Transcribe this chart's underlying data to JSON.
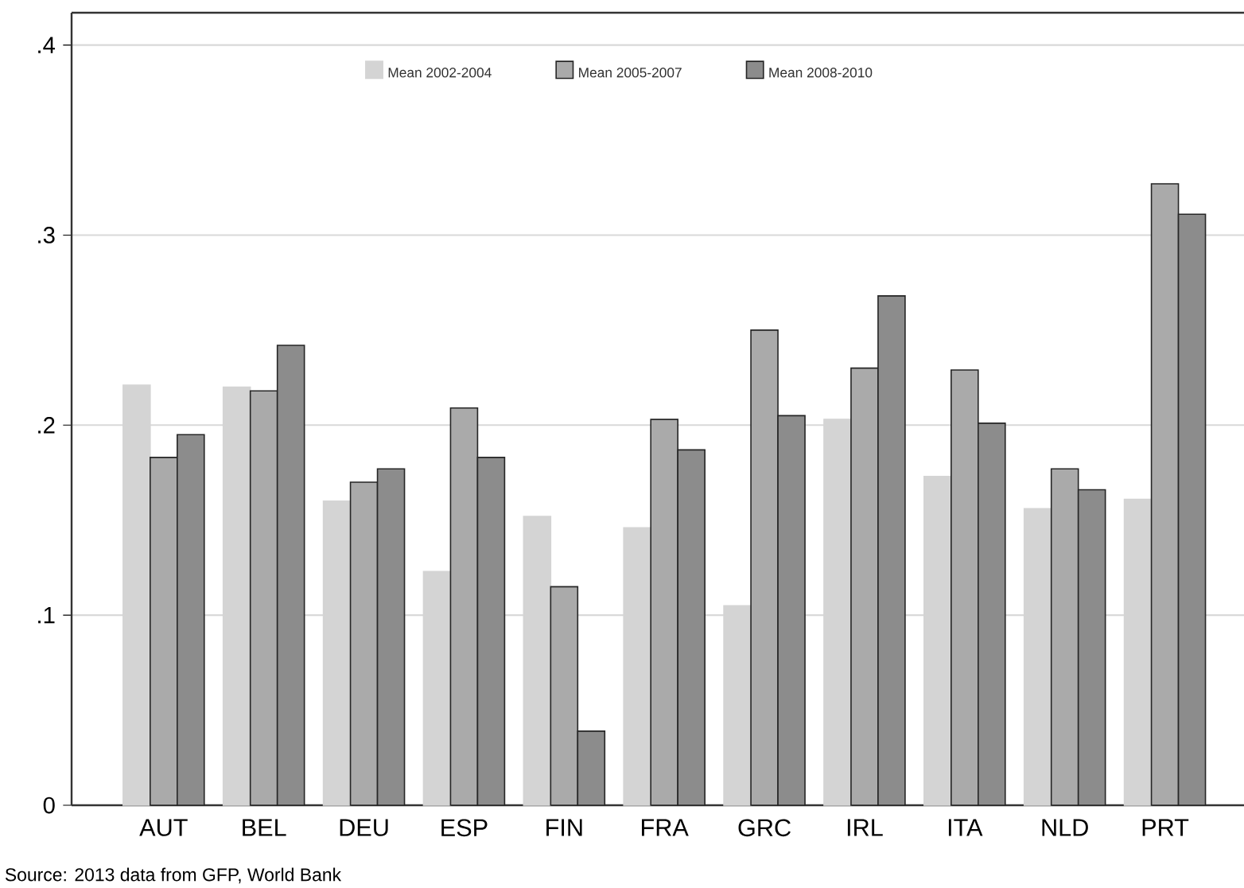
{
  "chart_data": {
    "type": "bar",
    "categories": [
      "AUT",
      "BEL",
      "DEU",
      "ESP",
      "FIN",
      "FRA",
      "GRC",
      "IRL",
      "ITA",
      "NLD",
      "PRT"
    ],
    "series": [
      {
        "name": "Mean 2002-2004",
        "color": "#d4d4d4",
        "values": [
          0.221,
          0.22,
          0.16,
          0.123,
          0.152,
          0.146,
          0.105,
          0.203,
          0.173,
          0.156,
          0.161
        ]
      },
      {
        "name": "Mean 2005-2007",
        "color": "#aaaaaa",
        "values": [
          0.183,
          0.218,
          0.17,
          0.209,
          0.115,
          0.203,
          0.25,
          0.23,
          0.229,
          0.177,
          0.327
        ]
      },
      {
        "name": "Mean 2008-2010",
        "color": "#8c8c8c",
        "values": [
          0.195,
          0.242,
          0.177,
          0.183,
          0.039,
          0.187,
          0.205,
          0.268,
          0.201,
          0.166,
          0.311
        ]
      }
    ],
    "ylim": [
      0,
      0.417
    ],
    "yticks": [
      0,
      {
        "value": 0.1,
        "label": ".1"
      },
      {
        "value": 0.2,
        "label": ".2"
      },
      {
        "value": 0.3,
        "label": ".3"
      },
      {
        "value": 0.4,
        "label": ".4"
      }
    ],
    "grid": "y",
    "legend": "top",
    "annotations": [
      "Source: 2013 data from GFP, World Bank"
    ]
  }
}
